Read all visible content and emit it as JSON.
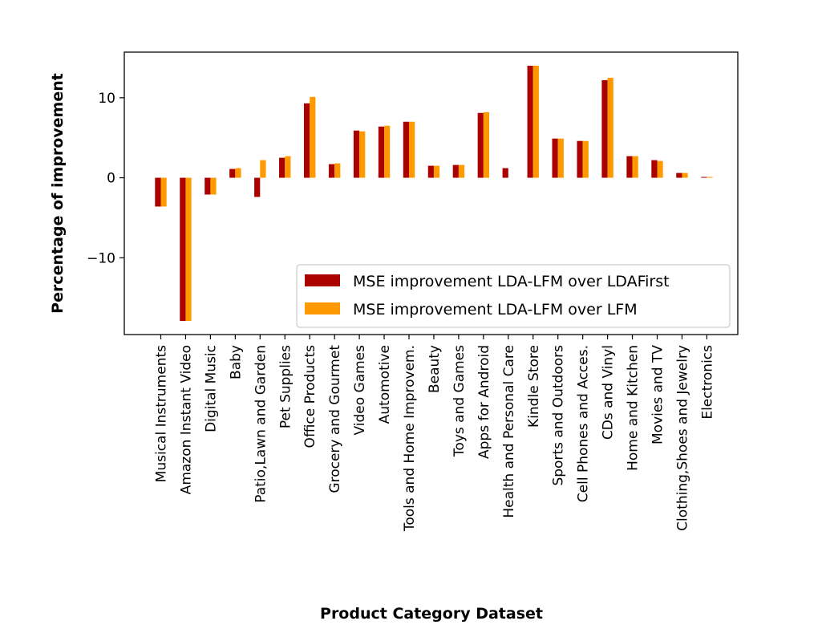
{
  "chart_data": {
    "type": "bar",
    "xlabel": "Product Category Dataset",
    "ylabel": "Percentage of improvement",
    "ylim": [
      -19.6,
      15.7
    ],
    "yticks": [
      -10,
      0,
      10
    ],
    "grid": false,
    "legend_position": "lower-right",
    "categories": [
      "Musical Instruments",
      "Amazon Instant Video",
      "Digital Music",
      "Baby",
      "Patio,Lawn and Garden",
      "Pet Supplies",
      "Office Products",
      "Grocery and Gourmet",
      "Video Games",
      "Automotive",
      "Tools and Home Improvem.",
      "Beauty",
      "Toys and Games",
      "Apps for Android",
      "Health and Personal Care",
      "Kindle Store",
      "Sports and Outdoors",
      "Cell Phones and Acces.",
      "CDs and Vinyl",
      "Home and Kitchen",
      "Movies and TV",
      "Clothing,Shoes and Jewelry",
      "Electronics"
    ],
    "series": [
      {
        "name": "MSE improvement LDA-LFM over LDAFirst",
        "color": "#aa0000",
        "values": [
          -3.6,
          -17.9,
          -2.1,
          1.1,
          -2.4,
          2.5,
          9.3,
          1.7,
          5.9,
          6.4,
          7.0,
          1.5,
          1.6,
          8.1,
          1.2,
          14.0,
          4.9,
          4.6,
          12.2,
          2.7,
          2.2,
          0.6,
          0.1
        ]
      },
      {
        "name": "MSE improvement LDA-LFM over LFM",
        "color": "#ff9900",
        "values": [
          -3.6,
          -17.9,
          -2.1,
          1.2,
          2.2,
          2.7,
          10.1,
          1.8,
          5.8,
          6.5,
          7.0,
          1.5,
          1.6,
          8.2,
          0.0,
          14.0,
          4.9,
          4.6,
          12.5,
          2.7,
          2.1,
          0.6,
          0.1
        ]
      }
    ]
  }
}
